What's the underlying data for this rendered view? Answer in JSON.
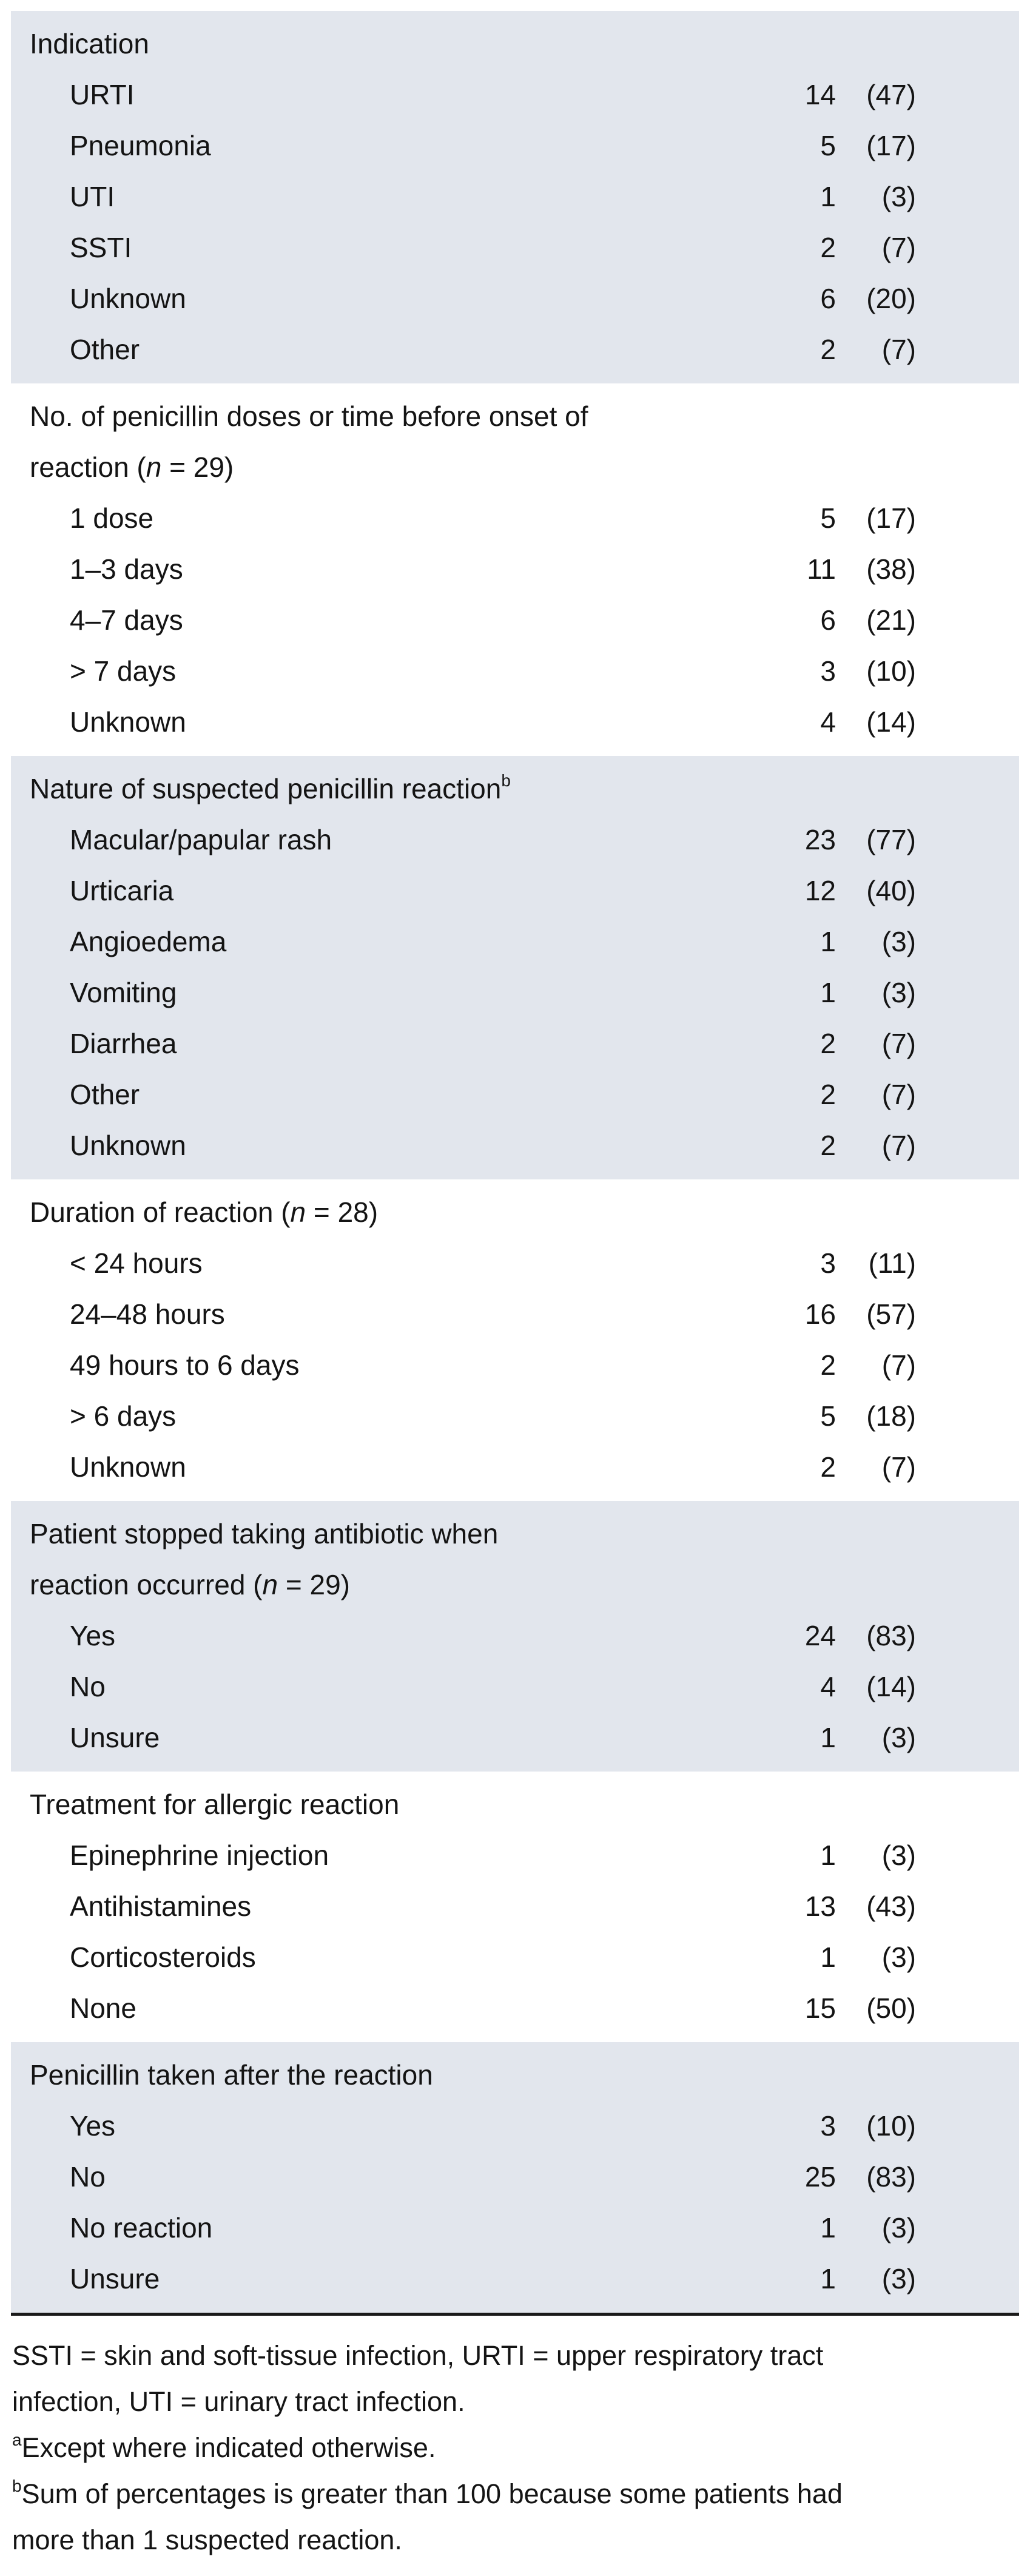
{
  "table": {
    "colors": {
      "shade": "#e2e6ed",
      "rule": "#1a1a1a",
      "text": "#141414"
    },
    "sections": [
      {
        "shaded": true,
        "title_pre": "Indication",
        "rows": [
          {
            "label": "URTI",
            "n": "14",
            "pct": "(47)"
          },
          {
            "label": "Pneumonia",
            "n": "5",
            "pct": "(17)"
          },
          {
            "label": "UTI",
            "n": "1",
            "pct": "(3)"
          },
          {
            "label": "SSTI",
            "n": "2",
            "pct": "(7)"
          },
          {
            "label": "Unknown",
            "n": "6",
            "pct": "(20)"
          },
          {
            "label": "Other",
            "n": "2",
            "pct": "(7)"
          }
        ]
      },
      {
        "shaded": false,
        "title_pre": "No. of penicillin doses or time before onset of\nreaction (",
        "title_n": "n",
        "title_post": " = 29)",
        "rows": [
          {
            "label": "1 dose",
            "n": "5",
            "pct": "(17)"
          },
          {
            "label": "1–3 days",
            "n": "11",
            "pct": "(38)"
          },
          {
            "label": "4–7 days",
            "n": "6",
            "pct": "(21)"
          },
          {
            "label": "> 7 days",
            "n": "3",
            "pct": "(10)"
          },
          {
            "label": "Unknown",
            "n": "4",
            "pct": "(14)"
          }
        ]
      },
      {
        "shaded": true,
        "title_pre": "Nature of suspected penicillin reaction",
        "title_sup": "b",
        "rows": [
          {
            "label": "Macular/papular rash",
            "n": "23",
            "pct": "(77)"
          },
          {
            "label": "Urticaria",
            "n": "12",
            "pct": "(40)"
          },
          {
            "label": "Angioedema",
            "n": "1",
            "pct": "(3)"
          },
          {
            "label": "Vomiting",
            "n": "1",
            "pct": "(3)"
          },
          {
            "label": "Diarrhea",
            "n": "2",
            "pct": "(7)"
          },
          {
            "label": "Other",
            "n": "2",
            "pct": "(7)"
          },
          {
            "label": "Unknown",
            "n": "2",
            "pct": "(7)"
          }
        ]
      },
      {
        "shaded": false,
        "title_pre": "Duration of reaction (",
        "title_n": "n",
        "title_post": " = 28)",
        "rows": [
          {
            "label": "< 24 hours",
            "n": "3",
            "pct": "(11)"
          },
          {
            "label": "24–48 hours",
            "n": "16",
            "pct": "(57)"
          },
          {
            "label": "49 hours to 6 days",
            "n": "2",
            "pct": "(7)"
          },
          {
            "label": "> 6 days",
            "n": "5",
            "pct": "(18)"
          },
          {
            "label": "Unknown",
            "n": "2",
            "pct": "(7)"
          }
        ]
      },
      {
        "shaded": true,
        "title_pre": "Patient stopped taking antibiotic when\nreaction occurred (",
        "title_n": "n",
        "title_post": " = 29)",
        "rows": [
          {
            "label": "Yes",
            "n": "24",
            "pct": "(83)"
          },
          {
            "label": "No",
            "n": "4",
            "pct": "(14)"
          },
          {
            "label": "Unsure",
            "n": "1",
            "pct": "(3)"
          }
        ]
      },
      {
        "shaded": false,
        "title_pre": "Treatment for allergic reaction",
        "rows": [
          {
            "label": "Epinephrine injection",
            "n": "1",
            "pct": "(3)"
          },
          {
            "label": "Antihistamines",
            "n": "13",
            "pct": "(43)"
          },
          {
            "label": "Corticosteroids",
            "n": "1",
            "pct": "(3)"
          },
          {
            "label": "None",
            "n": "15",
            "pct": "(50)"
          }
        ]
      },
      {
        "shaded": true,
        "title_pre": "Penicillin taken after the reaction",
        "rows": [
          {
            "label": "Yes",
            "n": "3",
            "pct": "(10)"
          },
          {
            "label": "No",
            "n": "25",
            "pct": "(83)"
          },
          {
            "label": "No reaction",
            "n": "1",
            "pct": "(3)"
          },
          {
            "label": "Unsure",
            "n": "1",
            "pct": "(3)"
          }
        ]
      }
    ],
    "footnotes": [
      {
        "sup": "",
        "text": "SSTI = skin and soft-tissue infection, URTI = upper respiratory tract\ninfection, UTI = urinary tract infection."
      },
      {
        "sup": "a",
        "text": "Except where indicated otherwise."
      },
      {
        "sup": "b",
        "text": "Sum of percentages is greater than 100 because some patients had\nmore than 1 suspected reaction."
      }
    ]
  }
}
